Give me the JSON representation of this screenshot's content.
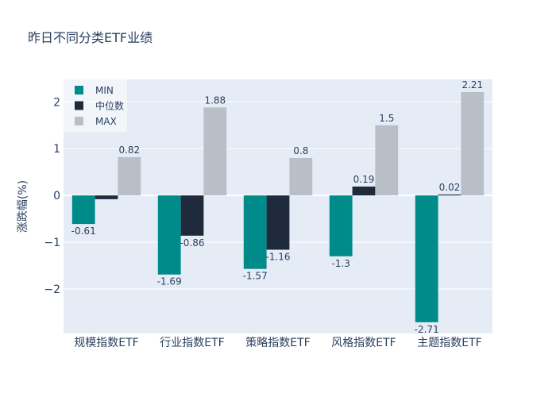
{
  "chart_data": {
    "type": "bar",
    "title": "昨日不同分类ETF业绩",
    "xlabel": "",
    "ylabel": "涨跌幅(%)",
    "categories": [
      "规模指数ETF",
      "行业指数ETF",
      "策略指数ETF",
      "风格指数ETF",
      "主题指数ETF"
    ],
    "series": [
      {
        "name": "MIN",
        "color": "#008b8b",
        "values": [
          -0.61,
          -1.69,
          -1.57,
          -1.3,
          -2.71
        ],
        "labels": [
          "-0.61",
          "-1.69",
          "-1.57",
          "-1.3",
          "-2.71"
        ]
      },
      {
        "name": "中位数",
        "color": "#1f2a3c",
        "values": [
          -0.08,
          -0.86,
          -1.16,
          0.19,
          0.02
        ],
        "labels": [
          "",
          "-0.86",
          "-1.16",
          "0.19",
          "0.02"
        ]
      },
      {
        "name": "MAX",
        "color": "#b8bfc7",
        "values": [
          0.82,
          1.88,
          0.8,
          1.5,
          2.21
        ],
        "labels": [
          "0.82",
          "1.88",
          "0.8",
          "1.5",
          "2.21"
        ]
      }
    ],
    "ylim": [
      -2.95,
      2.48
    ],
    "yticks": [
      -2,
      -1,
      0,
      1,
      2
    ],
    "ytick_labels": [
      "−2",
      "−1",
      "0",
      "1",
      "2"
    ],
    "grid": true,
    "legend_position": "top-left"
  }
}
